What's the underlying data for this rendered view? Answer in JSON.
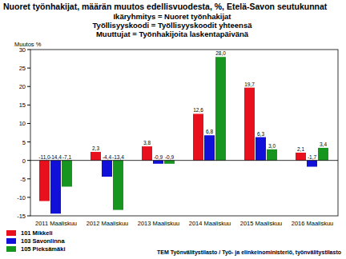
{
  "chart_data": {
    "type": "bar",
    "title": "Nuoret työnhakijat, määrän muutos edellisvuodesta, %, Etelä-Savon seutukunnat",
    "subtitle": [
      "Ikäryhmitys = Nuoret työnhakijat",
      "Työllisyyskoodi = Työllisyyskoodit yhteensä",
      "Muuttujat = Työnhakijoita laskentapäivänä"
    ],
    "y_label": "Muutos %",
    "annotations": [
      "TEM Työnvälitystilasto / Työ- ja elinkeinoministeriö, työnvälitystilasto"
    ],
    "categories": [
      "2011 Maaliskuu",
      "2012 Maaliskuu",
      "2013 Maaliskuu",
      "2014 Maaliskuu",
      "2015 Maaliskuu",
      "2016 Maaliskuu"
    ],
    "series": [
      {
        "name": "101 Mikkeli",
        "color": "#e8101c",
        "values": [
          -11.0,
          2.3,
          3.8,
          12.6,
          19.7,
          2.1
        ],
        "value_labels": [
          "-11,0",
          "2,3",
          "3,8",
          "12,6",
          "19,7",
          "2,1"
        ]
      },
      {
        "name": "103 Savonlinna",
        "color": "#1010d8",
        "values": [
          -14.4,
          -4.4,
          -0.9,
          6.8,
          6.3,
          -1.7
        ],
        "value_labels": [
          "-14,4",
          "-4,4",
          "-0,9",
          "6,8",
          "6,3",
          "-1,7"
        ]
      },
      {
        "name": "105 Pieksämäki",
        "color": "#16961e",
        "values": [
          -7.1,
          -13.4,
          -0.9,
          28.0,
          3.0,
          3.4
        ],
        "value_labels": [
          "-7,1",
          "-13,4",
          "-0,9",
          "28,0",
          "3,0",
          "3,4"
        ]
      }
    ],
    "ylim": [
      -15,
      30
    ],
    "yticks": [
      -15,
      -10,
      -5,
      0,
      5,
      10,
      15,
      20,
      25,
      30
    ],
    "grid": false,
    "legend": "bottom-left",
    "data_labels": true
  }
}
